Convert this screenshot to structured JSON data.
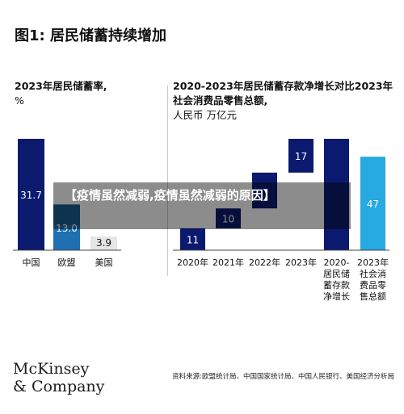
{
  "title": "图1: 居民储蓄持续增加",
  "overlay_banner": "【疫情虽然减弱,疫情虽然减弱的原因】",
  "brand": {
    "line1": "McKinsey",
    "line2": "& Company"
  },
  "source": "资料来源:欧盟统计局、中国国家统计局、中国人民银行、美国经济分析局",
  "colors": {
    "navy": "#0b1a6e",
    "mid_blue": "#1f6fb2",
    "light_blue": "#27a9e1",
    "gray": "#e6e6e6"
  },
  "chart_data": [
    {
      "type": "bar",
      "title": "2023年居民储蓄率,",
      "unit": "%",
      "categories": [
        "中国",
        "欧盟",
        "美国"
      ],
      "values": [
        31.7,
        13.0,
        3.9
      ],
      "value_labels": [
        "31.7",
        "13.0",
        "3.9"
      ],
      "ylim": [
        0,
        35
      ]
    },
    {
      "type": "bar",
      "title": "2020-2023年居民储蓄存款净增长对比2023年社会消费品零售总额,",
      "unit": "人民币 万亿元",
      "categories": [
        "2020年",
        "2021年",
        "2022年",
        "2023年",
        "2020-2023年居民储蓄存款净增长",
        "2023年社会消费品零售总额"
      ],
      "category_labels": [
        "2020年",
        "2021年",
        "2022年",
        "2023年",
        "2020-\n居民储\n蓄存款\n净增长",
        "2023年\n社会消\n费品零\n售总额"
      ],
      "values": [
        11,
        10,
        18,
        17,
        56,
        47
      ],
      "value_labels": [
        "11",
        "10",
        "",
        "17",
        "",
        "47"
      ],
      "bar_kind": [
        "step",
        "step",
        "step",
        "step",
        "total",
        "total"
      ],
      "ylim": [
        0,
        56
      ]
    }
  ]
}
